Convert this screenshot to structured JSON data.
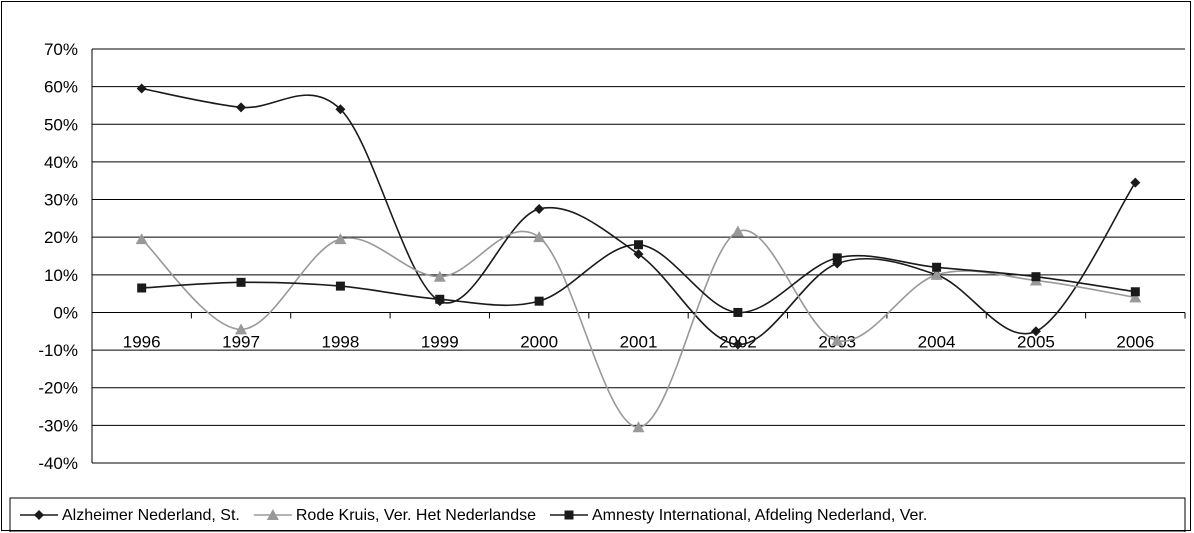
{
  "chart_data": {
    "type": "line",
    "title": "",
    "xlabel": "",
    "ylabel": "",
    "categories": [
      "1996",
      "1997",
      "1998",
      "1999",
      "2000",
      "2001",
      "2002",
      "2003",
      "2004",
      "2005",
      "2006"
    ],
    "ylim": [
      -40,
      70
    ],
    "yticks": [
      70,
      60,
      50,
      40,
      30,
      20,
      10,
      0,
      -10,
      -20,
      -30,
      -40
    ],
    "ytick_format": "percent",
    "grid": true,
    "smooth": true,
    "legend_position": "bottom",
    "series": [
      {
        "name": "Alzheimer Nederland, St.",
        "marker": "diamond",
        "color": "#1a1a1a",
        "values": [
          59.5,
          54.5,
          54,
          3,
          27.5,
          15.5,
          -8.5,
          13,
          10,
          -5,
          34.5
        ]
      },
      {
        "name": "Rode Kruis, Ver. Het Nederlandse",
        "marker": "triangle",
        "color": "#999999",
        "values": [
          19.5,
          -4.5,
          19.5,
          9.5,
          20,
          -30.5,
          21.5,
          -7.5,
          10,
          8.5,
          4
        ]
      },
      {
        "name": "Amnesty International, Afdeling Nederland, Ver.",
        "marker": "square",
        "color": "#1a1a1a",
        "values": [
          6.5,
          8,
          7,
          3.5,
          3,
          18,
          0,
          14.5,
          12,
          9.5,
          5.5
        ]
      }
    ]
  }
}
